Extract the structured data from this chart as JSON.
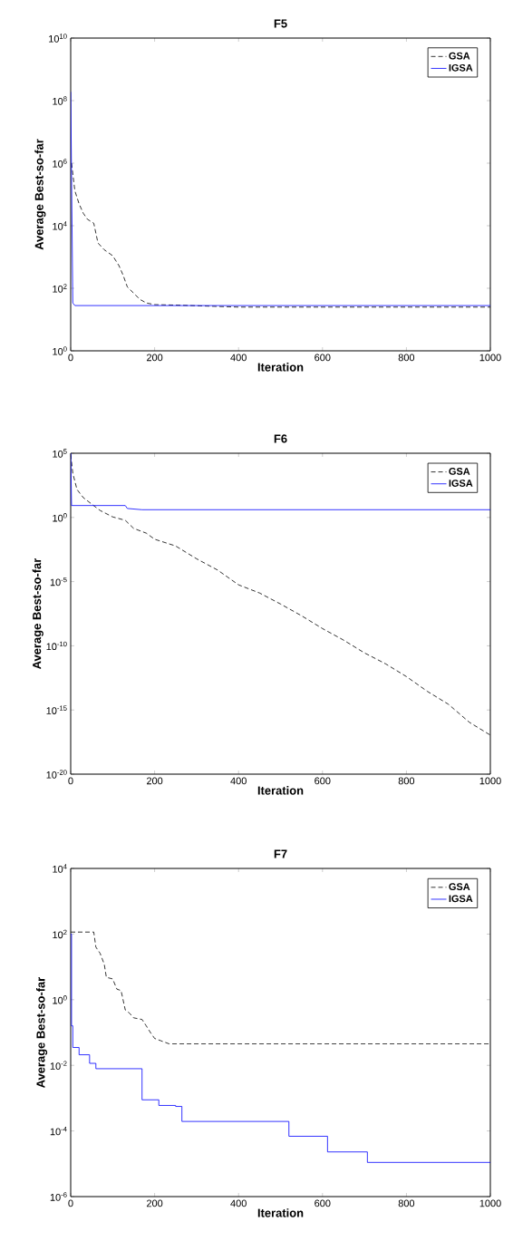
{
  "chart_data": [
    {
      "type": "line",
      "title": "F5",
      "xlabel": "Iteration",
      "ylabel": "Average Best-so-far",
      "log": "y",
      "legend": "top right",
      "xlim": [
        0,
        1000
      ],
      "ylim": [
        1,
        10000000000.0
      ],
      "xticks": [
        0,
        200,
        400,
        600,
        800,
        1000
      ],
      "yticks": [
        {
          "value": 1,
          "label": "10$^{0}$"
        },
        {
          "value": 100,
          "label": "10$^{2}$"
        },
        {
          "value": 10000.0,
          "label": "10$^{4}$"
        },
        {
          "value": 1000000.0,
          "label": "10$^{6}$"
        },
        {
          "value": 100000000.0,
          "label": "10$^{8}$"
        },
        {
          "value": 10000000000.0,
          "label": "10$^{10}$"
        }
      ],
      "series": [
        {
          "name": "GSA",
          "color": "#000000",
          "line_style": "dashed",
          "x": [
            2,
            10,
            20,
            30,
            40,
            55,
            65,
            80,
            100,
            115,
            125,
            135,
            150,
            165,
            180,
            200,
            250,
            400,
            1000
          ],
          "values": [
            1000000.0,
            130000.0,
            50000.0,
            25000.0,
            16000.0,
            12000.0,
            2800,
            1700,
            1100,
            530,
            260,
            110,
            70,
            44,
            34,
            30,
            29,
            25,
            25
          ]
        },
        {
          "name": "IGSA",
          "color": "#0000ff",
          "line_style": "solid",
          "x": [
            0,
            5,
            10,
            1000
          ],
          "values": [
            190000000.0,
            34,
            28,
            28
          ]
        }
      ]
    },
    {
      "type": "line",
      "title": "F6",
      "xlabel": "Iteration",
      "ylabel": "Average Best-so-far",
      "log": "y",
      "legend": "top right",
      "xlim": [
        0,
        1000
      ],
      "ylim": [
        1e-20,
        100000.0
      ],
      "xticks": [
        0,
        200,
        400,
        600,
        800,
        1000
      ],
      "yticks": [
        {
          "value": 1e-20,
          "label": "10$^{-20}$"
        },
        {
          "value": 1e-15,
          "label": "10$^{-15}$"
        },
        {
          "value": 1e-10,
          "label": "10$^{-10}$"
        },
        {
          "value": 1e-05,
          "label": "10$^{-5}$"
        },
        {
          "value": 1,
          "label": "10$^{0}$"
        },
        {
          "value": 100000.0,
          "label": "10$^{5}$"
        }
      ],
      "series": [
        {
          "name": "GSA",
          "color": "#000000",
          "line_style": "dashed",
          "x": [
            0,
            5,
            15,
            30,
            50,
            70,
            100,
            130,
            150,
            180,
            200,
            250,
            300,
            350,
            400,
            450,
            500,
            550,
            600,
            650,
            700,
            750,
            800,
            850,
            900,
            950,
            1000
          ],
          "values": [
            80000.0,
            2800,
            150,
            35,
            11,
            3.5,
            1.1,
            0.6,
            0.14,
            0.06,
            0.02,
            0.006,
            0.0006,
            8e-05,
            5.6e-06,
            1.3e-06,
            1.8e-07,
            2.2e-08,
            2.2e-09,
            2.8e-10,
            2.8e-11,
            4e-12,
            4e-13,
            2.8e-14,
            2.8e-15,
            1.1e-16,
            1.1e-17
          ]
        },
        {
          "name": "IGSA",
          "color": "#0000ff",
          "line_style": "solid",
          "x": [
            0,
            2,
            130,
            135,
            170,
            1000
          ],
          "values": [
            100000.0,
            8.5,
            8.5,
            5,
            4,
            4
          ]
        }
      ]
    },
    {
      "type": "line",
      "title": "F7",
      "xlabel": "Iteration",
      "ylabel": "Average Best-so-far",
      "log": "y",
      "legend": "top right",
      "xlim": [
        0,
        1000
      ],
      "ylim": [
        1e-06,
        10000.0
      ],
      "xticks": [
        0,
        200,
        400,
        600,
        800,
        1000
      ],
      "yticks": [
        {
          "value": 1e-06,
          "label": "10$^{-6}$"
        },
        {
          "value": 0.0001,
          "label": "10$^{-4}$"
        },
        {
          "value": 0.01,
          "label": "10$^{-2}$"
        },
        {
          "value": 1,
          "label": "10$^{0}$"
        },
        {
          "value": 100,
          "label": "10$^{2}$"
        },
        {
          "value": 10000.0,
          "label": "10$^{4}$"
        }
      ],
      "series": [
        {
          "name": "GSA",
          "color": "#000000",
          "line_style": "dashed",
          "x": [
            0,
            55,
            60,
            70,
            80,
            85,
            100,
            110,
            120,
            130,
            140,
            150,
            170,
            180,
            190,
            200,
            215,
            235,
            1000
          ],
          "values": [
            115,
            115,
            40,
            26,
            12,
            4.8,
            4.3,
            2.1,
            1.9,
            0.49,
            0.39,
            0.28,
            0.25,
            0.16,
            0.1,
            0.066,
            0.056,
            0.045,
            0.045
          ]
        },
        {
          "name": "IGSA",
          "color": "#0000ff",
          "line_style": "solid",
          "type": "step",
          "x": [
            0,
            2,
            5,
            20,
            45,
            60,
            170,
            210,
            250,
            265,
            520,
            612,
            707,
            1000
          ],
          "values": [
            100,
            0.16,
            0.035,
            0.021,
            0.0115,
            0.0079,
            0.00089,
            0.0006,
            0.00056,
            0.000195,
            6.9e-05,
            2.3e-05,
            1.1e-05,
            1.1e-05
          ]
        }
      ]
    }
  ]
}
